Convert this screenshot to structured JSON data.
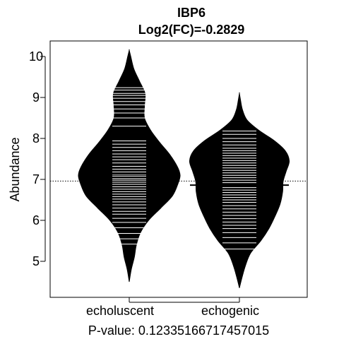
{
  "chart_data": {
    "type": "beanplot",
    "title": "IBP6",
    "subtitle": "Log2(FC)=-0.2829",
    "xlabel": "P-value: 0.12335166717457015",
    "ylabel": "Abundance",
    "ylim": [
      4.2,
      10.4
    ],
    "yticks": [
      5,
      6,
      7,
      8,
      9,
      10
    ],
    "overall_mean": 6.96,
    "categories": [
      "echoluscent",
      "echogenic"
    ],
    "series": [
      {
        "category": "echoluscent",
        "mean": 7.14,
        "density": [
          [
            4.5,
            0.0
          ],
          [
            4.8,
            0.04
          ],
          [
            5.1,
            0.1
          ],
          [
            5.4,
            0.14
          ],
          [
            5.7,
            0.22
          ],
          [
            6.0,
            0.38
          ],
          [
            6.3,
            0.62
          ],
          [
            6.6,
            0.85
          ],
          [
            6.9,
            0.96
          ],
          [
            7.1,
            1.0
          ],
          [
            7.3,
            0.95
          ],
          [
            7.6,
            0.8
          ],
          [
            7.9,
            0.6
          ],
          [
            8.2,
            0.42
          ],
          [
            8.5,
            0.3
          ],
          [
            8.8,
            0.3
          ],
          [
            9.1,
            0.31
          ],
          [
            9.4,
            0.2
          ],
          [
            9.7,
            0.09
          ],
          [
            10.0,
            0.03
          ],
          [
            10.15,
            0.0
          ]
        ],
        "points": [
          5.42,
          5.55,
          5.68,
          5.82,
          5.95,
          6.05,
          6.15,
          6.22,
          6.3,
          6.38,
          6.45,
          6.52,
          6.58,
          6.64,
          6.7,
          6.76,
          6.82,
          6.88,
          6.93,
          6.98,
          7.02,
          7.08,
          7.12,
          7.18,
          7.25,
          7.32,
          7.4,
          7.48,
          7.55,
          7.62,
          7.7,
          7.78,
          7.86,
          7.94,
          8.3,
          8.5,
          8.62,
          8.72,
          8.82,
          8.9,
          8.98,
          9.05,
          9.1,
          9.18,
          9.24
        ]
      },
      {
        "category": "echogenic",
        "mean": 6.86,
        "density": [
          [
            4.35,
            0.0
          ],
          [
            4.6,
            0.05
          ],
          [
            4.9,
            0.12
          ],
          [
            5.2,
            0.22
          ],
          [
            5.5,
            0.42
          ],
          [
            5.8,
            0.58
          ],
          [
            6.1,
            0.7
          ],
          [
            6.4,
            0.8
          ],
          [
            6.7,
            0.85
          ],
          [
            6.95,
            0.86
          ],
          [
            7.2,
            0.92
          ],
          [
            7.45,
            0.98
          ],
          [
            7.7,
            0.9
          ],
          [
            7.95,
            0.68
          ],
          [
            8.2,
            0.38
          ],
          [
            8.45,
            0.15
          ],
          [
            8.7,
            0.06
          ],
          [
            8.95,
            0.02
          ],
          [
            9.1,
            0.0
          ]
        ],
        "points": [
          5.3,
          5.45,
          5.58,
          5.7,
          5.8,
          5.88,
          5.96,
          6.04,
          6.12,
          6.2,
          6.28,
          6.36,
          6.44,
          6.5,
          6.56,
          6.62,
          6.68,
          6.74,
          6.8,
          6.86,
          6.92,
          6.98,
          7.04,
          7.1,
          7.16,
          7.22,
          7.28,
          7.34,
          7.4,
          7.46,
          7.52,
          7.58,
          7.64,
          7.7,
          7.76,
          7.84,
          7.92,
          8.0,
          8.1,
          8.18
        ]
      }
    ],
    "colors": {
      "fill": "#000000",
      "points": "#ffffff",
      "background": "#ffffff"
    }
  }
}
